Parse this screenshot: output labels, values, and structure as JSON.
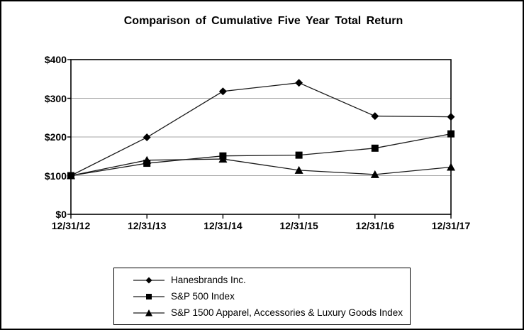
{
  "page": {
    "background": "#ffffff",
    "border_color": "#000000"
  },
  "chart_data": {
    "type": "line",
    "title": "Comparison of Cumulative Five Year Total Return",
    "categories": [
      "12/31/12",
      "12/31/13",
      "12/31/14",
      "12/31/15",
      "12/31/16",
      "12/31/17"
    ],
    "series": [
      {
        "name": "Hanesbrands Inc.",
        "marker": "diamond",
        "values": [
          100,
          199,
          318,
          340,
          254,
          252
        ]
      },
      {
        "name": "S&P 500 Index",
        "marker": "square",
        "values": [
          100,
          132,
          151,
          153,
          171,
          208
        ]
      },
      {
        "name": "S&P 1500 Apparel, Accessories & Luxury Goods Index",
        "marker": "triangle",
        "values": [
          100,
          140,
          143,
          114,
          103,
          122
        ]
      }
    ],
    "xlabel": "",
    "ylabel": "",
    "y_tick_labels": [
      "$0",
      "$100",
      "$200",
      "$300",
      "$400"
    ],
    "y_tick_values": [
      0,
      100,
      200,
      300,
      400
    ],
    "ylim": [
      0,
      400
    ],
    "grid": true,
    "legend_position": "bottom",
    "colors": {
      "series_line": "#1a1a1a",
      "marker_fill": "#000000",
      "gridline": "#a6a6a6",
      "axis": "#000000",
      "text": "#000000",
      "background": "#ffffff"
    }
  }
}
